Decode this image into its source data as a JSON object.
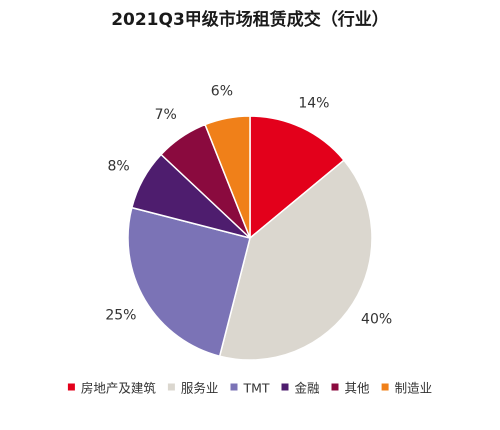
{
  "chart_data": {
    "type": "pie",
    "title": "2021Q3甲级市场租赁成交（行业）",
    "slices": [
      {
        "label": "房地产及建筑",
        "value": 14,
        "display": "14%",
        "color": "#e3001b"
      },
      {
        "label": "服务业",
        "value": 40,
        "display": "40%",
        "color": "#dbd7cf"
      },
      {
        "label": "TMT",
        "value": 25,
        "display": "25%",
        "color": "#7b73b6"
      },
      {
        "label": "金融",
        "value": 8,
        "display": "8%",
        "color": "#4e1d6e"
      },
      {
        "label": "其他",
        "value": 7,
        "display": "7%",
        "color": "#8a0a3e"
      },
      {
        "label": "制造业",
        "value": 6,
        "display": "6%",
        "color": "#f08019"
      }
    ],
    "start_angle_deg": 0,
    "direction": "clockwise",
    "legend_position": "bottom",
    "slice_border_color": "#ffffff"
  }
}
